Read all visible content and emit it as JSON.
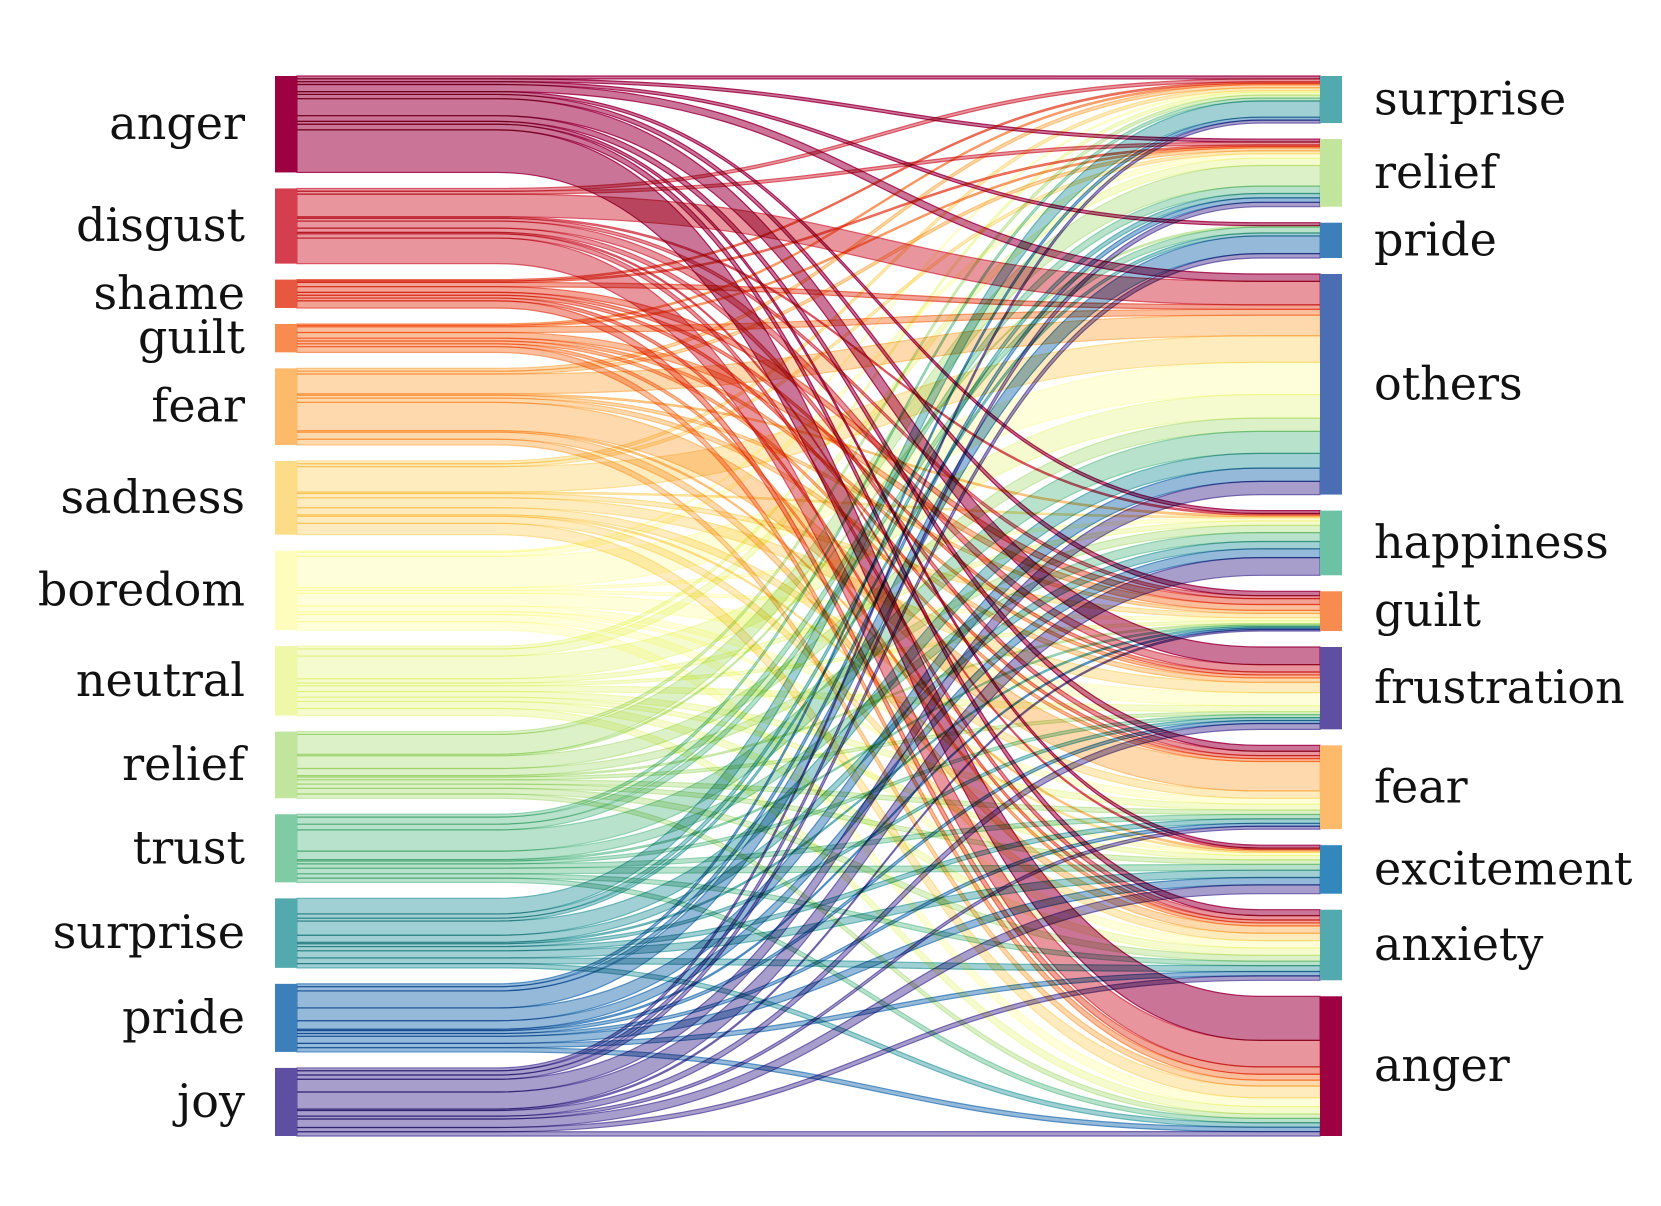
{
  "left_nodes": [
    {
      "id": "anger",
      "label": "anger",
      "color": "#9e0142"
    },
    {
      "id": "disgust",
      "label": "disgust",
      "color": "#d53e4f"
    },
    {
      "id": "shame",
      "label": "shame",
      "color": "#e8573f"
    },
    {
      "id": "guilt",
      "label": "guilt",
      "color": "#f88b4f"
    },
    {
      "id": "fear",
      "label": "fear",
      "color": "#fdba6b"
    },
    {
      "id": "sadness",
      "label": "sadness",
      "color": "#fddc88"
    },
    {
      "id": "boredom",
      "label": "boredom",
      "color": "#fefdbd"
    },
    {
      "id": "neutral",
      "label": "neutral",
      "color": "#eef8a8"
    },
    {
      "id": "relief",
      "label": "relief",
      "color": "#c1e59c"
    },
    {
      "id": "trust",
      "label": "trust",
      "color": "#7fcba4"
    },
    {
      "id": "surprise",
      "label": "surprise",
      "color": "#52aaae"
    },
    {
      "id": "pride",
      "label": "pride",
      "color": "#3c7fba"
    },
    {
      "id": "joy",
      "label": "joy",
      "color": "#5e4fa2"
    }
  ],
  "right_nodes": [
    {
      "id": "surprise",
      "label": "surprise",
      "color": "#52aaae"
    },
    {
      "id": "relief",
      "label": "relief",
      "color": "#c1e59c"
    },
    {
      "id": "pride",
      "label": "pride",
      "color": "#3c7fba"
    },
    {
      "id": "others",
      "label": "others",
      "color": "#4a6db4"
    },
    {
      "id": "happiness",
      "label": "happiness",
      "color": "#6cc2a4"
    },
    {
      "id": "guilt",
      "label": "guilt",
      "color": "#f88b4f"
    },
    {
      "id": "frustration",
      "label": "frustration",
      "color": "#5e4fa2"
    },
    {
      "id": "fear",
      "label": "fear",
      "color": "#fdba6b"
    },
    {
      "id": "excitement",
      "label": "excitement",
      "color": "#3288bd"
    },
    {
      "id": "anxiety",
      "label": "anxiety",
      "color": "#52aaae"
    },
    {
      "id": "anger",
      "label": "anger",
      "color": "#9e0142"
    }
  ],
  "flows": [
    {
      "source": "anger",
      "target": "anger",
      "value": 3.0
    },
    {
      "source": "anger",
      "target": "frustration",
      "value": 1.2
    },
    {
      "source": "anger",
      "target": "others",
      "value": 0.5
    },
    {
      "source": "anger",
      "target": "anxiety",
      "value": 0.4
    },
    {
      "source": "anger",
      "target": "fear",
      "value": 0.4
    },
    {
      "source": "anger",
      "target": "guilt",
      "value": 0.3
    },
    {
      "source": "anger",
      "target": "relief",
      "value": 0.2
    },
    {
      "source": "anger",
      "target": "pride",
      "value": 0.2
    },
    {
      "source": "anger",
      "target": "surprise",
      "value": 0.2
    },
    {
      "source": "anger",
      "target": "excitement",
      "value": 0.2
    },
    {
      "source": "anger",
      "target": "happiness",
      "value": 0.2
    },
    {
      "source": "disgust",
      "target": "anger",
      "value": 1.8
    },
    {
      "source": "disgust",
      "target": "others",
      "value": 1.6
    },
    {
      "source": "disgust",
      "target": "frustration",
      "value": 0.5
    },
    {
      "source": "disgust",
      "target": "fear",
      "value": 0.3
    },
    {
      "source": "disgust",
      "target": "anxiety",
      "value": 0.3
    },
    {
      "source": "disgust",
      "target": "guilt",
      "value": 0.2
    },
    {
      "source": "disgust",
      "target": "relief",
      "value": 0.2
    },
    {
      "source": "disgust",
      "target": "surprise",
      "value": 0.2
    },
    {
      "source": "disgust",
      "target": "excitement",
      "value": 0.1
    },
    {
      "source": "disgust",
      "target": "happiness",
      "value": 0.1
    },
    {
      "source": "shame",
      "target": "anger",
      "value": 0.5
    },
    {
      "source": "shame",
      "target": "guilt",
      "value": 0.4
    },
    {
      "source": "shame",
      "target": "others",
      "value": 0.3
    },
    {
      "source": "shame",
      "target": "frustration",
      "value": 0.2
    },
    {
      "source": "shame",
      "target": "fear",
      "value": 0.2
    },
    {
      "source": "shame",
      "target": "anxiety",
      "value": 0.2
    },
    {
      "source": "shame",
      "target": "surprise",
      "value": 0.1
    },
    {
      "source": "shame",
      "target": "relief",
      "value": 0.1
    },
    {
      "source": "guilt",
      "target": "anger",
      "value": 0.4
    },
    {
      "source": "guilt",
      "target": "guilt",
      "value": 0.4
    },
    {
      "source": "guilt",
      "target": "others",
      "value": 0.4
    },
    {
      "source": "guilt",
      "target": "frustration",
      "value": 0.2
    },
    {
      "source": "guilt",
      "target": "fear",
      "value": 0.2
    },
    {
      "source": "guilt",
      "target": "anxiety",
      "value": 0.2
    },
    {
      "source": "guilt",
      "target": "surprise",
      "value": 0.1
    },
    {
      "source": "guilt",
      "target": "relief",
      "value": 0.1
    },
    {
      "source": "fear",
      "target": "fear",
      "value": 2.0
    },
    {
      "source": "fear",
      "target": "others",
      "value": 1.4
    },
    {
      "source": "fear",
      "target": "anxiety",
      "value": 0.5
    },
    {
      "source": "fear",
      "target": "anger",
      "value": 0.4
    },
    {
      "source": "fear",
      "target": "frustration",
      "value": 0.3
    },
    {
      "source": "fear",
      "target": "guilt",
      "value": 0.2
    },
    {
      "source": "fear",
      "target": "surprise",
      "value": 0.2
    },
    {
      "source": "fear",
      "target": "relief",
      "value": 0.2
    },
    {
      "source": "fear",
      "target": "excitement",
      "value": 0.1
    },
    {
      "source": "fear",
      "target": "happiness",
      "value": 0.1
    },
    {
      "source": "sadness",
      "target": "others",
      "value": 1.8
    },
    {
      "source": "sadness",
      "target": "anger",
      "value": 0.8
    },
    {
      "source": "sadness",
      "target": "frustration",
      "value": 0.7
    },
    {
      "source": "sadness",
      "target": "fear",
      "value": 0.5
    },
    {
      "source": "sadness",
      "target": "anxiety",
      "value": 0.5
    },
    {
      "source": "sadness",
      "target": "guilt",
      "value": 0.3
    },
    {
      "source": "sadness",
      "target": "relief",
      "value": 0.2
    },
    {
      "source": "sadness",
      "target": "surprise",
      "value": 0.2
    },
    {
      "source": "sadness",
      "target": "excitement",
      "value": 0.1
    },
    {
      "source": "sadness",
      "target": "happiness",
      "value": 0.1
    },
    {
      "source": "boredom",
      "target": "others",
      "value": 2.2
    },
    {
      "source": "boredom",
      "target": "frustration",
      "value": 0.9
    },
    {
      "source": "boredom",
      "target": "anger",
      "value": 0.6
    },
    {
      "source": "boredom",
      "target": "anxiety",
      "value": 0.5
    },
    {
      "source": "boredom",
      "target": "fear",
      "value": 0.4
    },
    {
      "source": "boredom",
      "target": "relief",
      "value": 0.3
    },
    {
      "source": "boredom",
      "target": "excitement",
      "value": 0.2
    },
    {
      "source": "boredom",
      "target": "guilt",
      "value": 0.2
    },
    {
      "source": "boredom",
      "target": "happiness",
      "value": 0.2
    },
    {
      "source": "boredom",
      "target": "surprise",
      "value": 0.1
    },
    {
      "source": "neutral",
      "target": "others",
      "value": 1.6
    },
    {
      "source": "neutral",
      "target": "relief",
      "value": 0.5
    },
    {
      "source": "neutral",
      "target": "anxiety",
      "value": 0.5
    },
    {
      "source": "neutral",
      "target": "anger",
      "value": 0.5
    },
    {
      "source": "neutral",
      "target": "fear",
      "value": 0.4
    },
    {
      "source": "neutral",
      "target": "frustration",
      "value": 0.4
    },
    {
      "source": "neutral",
      "target": "excitement",
      "value": 0.3
    },
    {
      "source": "neutral",
      "target": "happiness",
      "value": 0.3
    },
    {
      "source": "neutral",
      "target": "surprise",
      "value": 0.2
    },
    {
      "source": "neutral",
      "target": "guilt",
      "value": 0.2
    },
    {
      "source": "relief",
      "target": "relief",
      "value": 1.4
    },
    {
      "source": "relief",
      "target": "others",
      "value": 0.9
    },
    {
      "source": "relief",
      "target": "happiness",
      "value": 0.5
    },
    {
      "source": "relief",
      "target": "anxiety",
      "value": 0.4
    },
    {
      "source": "relief",
      "target": "anger",
      "value": 0.3
    },
    {
      "source": "relief",
      "target": "excitement",
      "value": 0.3
    },
    {
      "source": "relief",
      "target": "fear",
      "value": 0.3
    },
    {
      "source": "relief",
      "target": "surprise",
      "value": 0.2
    },
    {
      "source": "relief",
      "target": "frustration",
      "value": 0.2
    },
    {
      "source": "relief",
      "target": "guilt",
      "value": 0.1
    },
    {
      "source": "relief",
      "target": "pride",
      "value": 0.1
    },
    {
      "source": "trust",
      "target": "others",
      "value": 1.5
    },
    {
      "source": "trust",
      "target": "happiness",
      "value": 0.6
    },
    {
      "source": "trust",
      "target": "relief",
      "value": 0.5
    },
    {
      "source": "trust",
      "target": "excitement",
      "value": 0.4
    },
    {
      "source": "trust",
      "target": "pride",
      "value": 0.4
    },
    {
      "source": "trust",
      "target": "anxiety",
      "value": 0.3
    },
    {
      "source": "trust",
      "target": "anger",
      "value": 0.3
    },
    {
      "source": "trust",
      "target": "fear",
      "value": 0.3
    },
    {
      "source": "trust",
      "target": "surprise",
      "value": 0.2
    },
    {
      "source": "trust",
      "target": "frustration",
      "value": 0.2
    },
    {
      "source": "trust",
      "target": "guilt",
      "value": 0.1
    },
    {
      "source": "surprise",
      "target": "surprise",
      "value": 1.1
    },
    {
      "source": "surprise",
      "target": "others",
      "value": 1.0
    },
    {
      "source": "surprise",
      "target": "excitement",
      "value": 0.5
    },
    {
      "source": "surprise",
      "target": "happiness",
      "value": 0.5
    },
    {
      "source": "surprise",
      "target": "anxiety",
      "value": 0.4
    },
    {
      "source": "surprise",
      "target": "anger",
      "value": 0.3
    },
    {
      "source": "surprise",
      "target": "fear",
      "value": 0.3
    },
    {
      "source": "surprise",
      "target": "relief",
      "value": 0.3
    },
    {
      "source": "surprise",
      "target": "pride",
      "value": 0.2
    },
    {
      "source": "surprise",
      "target": "frustration",
      "value": 0.2
    },
    {
      "source": "surprise",
      "target": "guilt",
      "value": 0.1
    },
    {
      "source": "pride",
      "target": "pride",
      "value": 1.2
    },
    {
      "source": "pride",
      "target": "others",
      "value": 0.9
    },
    {
      "source": "pride",
      "target": "happiness",
      "value": 0.6
    },
    {
      "source": "pride",
      "target": "excitement",
      "value": 0.5
    },
    {
      "source": "pride",
      "target": "relief",
      "value": 0.3
    },
    {
      "source": "pride",
      "target": "anger",
      "value": 0.3
    },
    {
      "source": "pride",
      "target": "anxiety",
      "value": 0.3
    },
    {
      "source": "pride",
      "target": "surprise",
      "value": 0.2
    },
    {
      "source": "pride",
      "target": "fear",
      "value": 0.2
    },
    {
      "source": "pride",
      "target": "frustration",
      "value": 0.2
    },
    {
      "source": "pride",
      "target": "guilt",
      "value": 0.1
    },
    {
      "source": "joy",
      "target": "happiness",
      "value": 1.2
    },
    {
      "source": "joy",
      "target": "others",
      "value": 0.9
    },
    {
      "source": "joy",
      "target": "excitement",
      "value": 0.6
    },
    {
      "source": "joy",
      "target": "frustration",
      "value": 0.4
    },
    {
      "source": "joy",
      "target": "relief",
      "value": 0.3
    },
    {
      "source": "joy",
      "target": "pride",
      "value": 0.3
    },
    {
      "source": "joy",
      "target": "anger",
      "value": 0.3
    },
    {
      "source": "joy",
      "target": "anxiety",
      "value": 0.3
    },
    {
      "source": "joy",
      "target": "surprise",
      "value": 0.2
    },
    {
      "source": "joy",
      "target": "fear",
      "value": 0.2
    },
    {
      "source": "joy",
      "target": "guilt",
      "value": 0.1
    }
  ]
}
